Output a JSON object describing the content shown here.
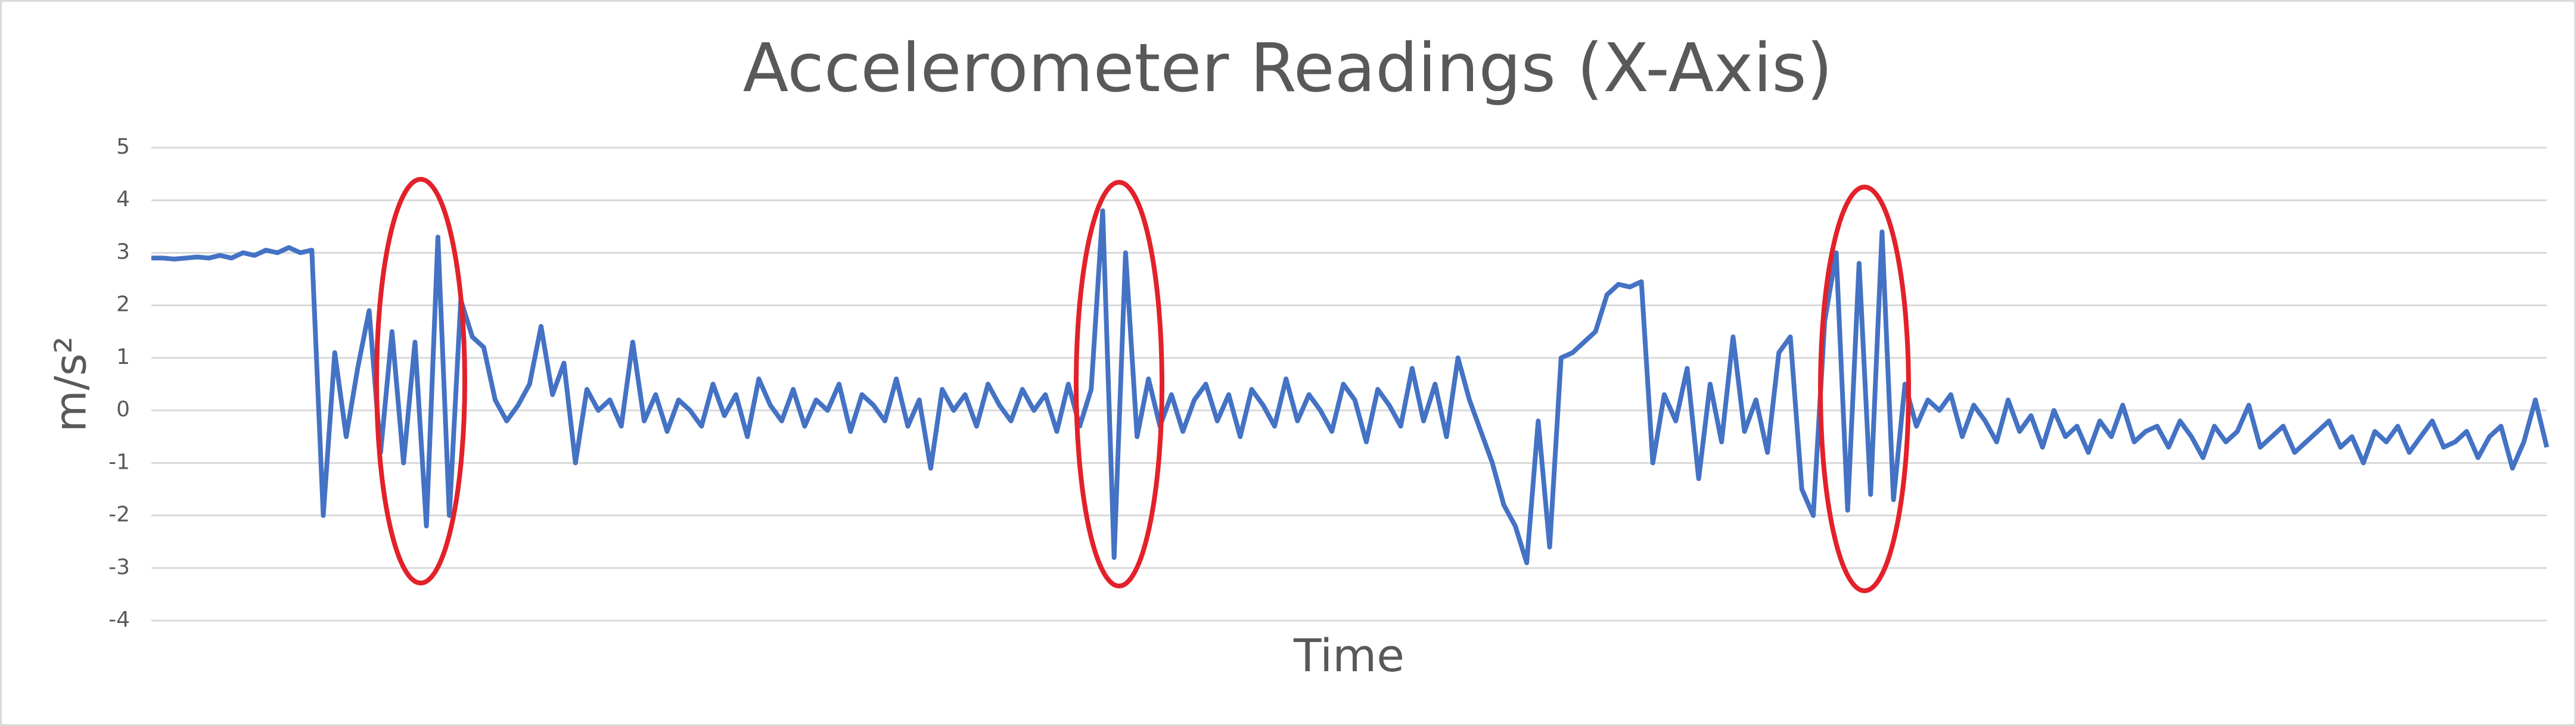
{
  "chart_data": {
    "type": "line",
    "title": "Accelerometer Readings (X-Axis)",
    "x_label": "Time",
    "y_label": "m/s²",
    "categories": [
      null,
      null,
      null,
      null,
      null,
      null,
      null,
      null,
      null,
      null,
      null,
      null,
      null,
      null,
      null,
      null,
      null,
      null,
      null,
      null,
      null,
      null,
      null,
      null,
      null,
      null,
      null,
      null,
      null,
      null,
      null,
      null,
      null,
      null,
      null,
      null,
      null,
      null,
      null,
      null,
      null,
      null,
      null,
      null,
      null,
      null,
      null,
      null,
      null,
      null,
      null,
      null,
      null,
      null,
      null,
      null,
      null,
      null,
      null,
      null,
      null,
      null,
      null,
      null,
      null,
      null,
      null,
      null,
      null,
      null,
      null,
      null,
      null,
      null,
      null,
      null,
      null,
      null,
      null,
      null,
      null,
      null,
      null,
      null,
      null,
      null,
      null,
      null,
      null,
      null,
      null,
      null,
      null,
      null,
      null,
      null,
      null,
      null,
      null,
      null,
      null,
      null,
      null,
      null,
      null,
      null,
      null,
      null,
      null,
      null,
      null,
      null,
      null,
      null,
      null,
      null,
      null,
      null,
      null,
      null,
      null,
      null,
      null,
      null,
      null,
      null,
      null,
      null,
      null,
      null,
      null,
      null,
      null,
      null,
      null,
      null,
      null,
      null,
      null,
      null,
      null,
      null,
      null,
      null,
      null,
      null,
      null,
      null,
      null,
      null,
      null,
      null,
      null,
      null,
      null,
      null,
      null,
      null,
      null,
      null,
      null,
      null,
      null,
      null,
      null,
      null,
      null,
      null,
      null,
      null,
      null,
      null,
      null,
      null,
      null,
      null,
      null,
      null,
      null,
      null,
      null,
      null,
      null,
      null,
      null,
      null,
      null,
      null,
      null,
      null,
      null,
      null,
      null,
      null,
      null,
      null,
      null,
      null,
      null,
      null,
      null,
      null,
      null,
      null,
      null,
      null,
      null,
      null,
      null,
      null
    ],
    "values": [
      2.9,
      2.9,
      2.88,
      2.9,
      2.92,
      2.9,
      2.95,
      2.9,
      3.0,
      2.95,
      3.05,
      3.0,
      3.1,
      3.0,
      3.05,
      -2.0,
      1.1,
      -0.5,
      0.8,
      1.9,
      -0.8,
      1.5,
      -1.0,
      1.3,
      -2.2,
      3.3,
      -2.0,
      2.1,
      1.4,
      1.2,
      0.2,
      -0.2,
      0.1,
      0.5,
      1.6,
      0.3,
      0.9,
      -1.0,
      0.4,
      0.0,
      0.2,
      -0.3,
      1.3,
      -0.2,
      0.3,
      -0.4,
      0.2,
      0.0,
      -0.3,
      0.5,
      -0.1,
      0.3,
      -0.5,
      0.6,
      0.1,
      -0.2,
      0.4,
      -0.3,
      0.2,
      0.0,
      0.5,
      -0.4,
      0.3,
      0.1,
      -0.2,
      0.6,
      -0.3,
      0.2,
      -1.1,
      0.4,
      0.0,
      0.3,
      -0.3,
      0.5,
      0.1,
      -0.2,
      0.4,
      0.0,
      0.3,
      -0.4,
      0.5,
      -0.3,
      0.4,
      3.8,
      -2.8,
      3.0,
      -0.5,
      0.6,
      -0.3,
      0.3,
      -0.4,
      0.2,
      0.5,
      -0.2,
      0.3,
      -0.5,
      0.4,
      0.1,
      -0.3,
      0.6,
      -0.2,
      0.3,
      0.0,
      -0.4,
      0.5,
      0.2,
      -0.6,
      0.4,
      0.1,
      -0.3,
      0.8,
      -0.2,
      0.5,
      -0.5,
      1.0,
      0.2,
      -0.4,
      -1.0,
      -1.8,
      -2.2,
      -2.9,
      -0.2,
      -2.6,
      1.0,
      1.1,
      1.3,
      1.5,
      2.2,
      2.4,
      2.35,
      2.45,
      -1.0,
      0.3,
      -0.2,
      0.8,
      -1.3,
      0.5,
      -0.6,
      1.4,
      -0.4,
      0.2,
      -0.8,
      1.1,
      1.4,
      -1.5,
      -2.0,
      1.7,
      3.0,
      -1.9,
      2.8,
      -1.6,
      3.4,
      -1.7,
      0.5,
      -0.3,
      0.2,
      0.0,
      0.3,
      -0.5,
      0.1,
      -0.2,
      -0.6,
      0.2,
      -0.4,
      -0.1,
      -0.7,
      0.0,
      -0.5,
      -0.3,
      -0.8,
      -0.2,
      -0.5,
      0.1,
      -0.6,
      -0.4,
      -0.3,
      -0.7,
      -0.2,
      -0.5,
      -0.9,
      -0.3,
      -0.6,
      -0.4,
      0.1,
      -0.7,
      -0.5,
      -0.3,
      -0.8,
      -0.6,
      -0.4,
      -0.2,
      -0.7,
      -0.5,
      -1.0,
      -0.4,
      -0.6,
      -0.3,
      -0.8,
      -0.5,
      -0.2,
      -0.7,
      -0.6,
      -0.4,
      -0.9,
      -0.5,
      -0.3,
      -1.1,
      -0.6,
      0.2,
      -0.7
    ],
    "color": "#4472c4",
    "ylim": [
      -4,
      5
    ],
    "yticks": [
      -4,
      -3,
      -2,
      -1,
      0,
      1,
      2,
      3,
      4,
      5
    ],
    "grid": true
  }
}
